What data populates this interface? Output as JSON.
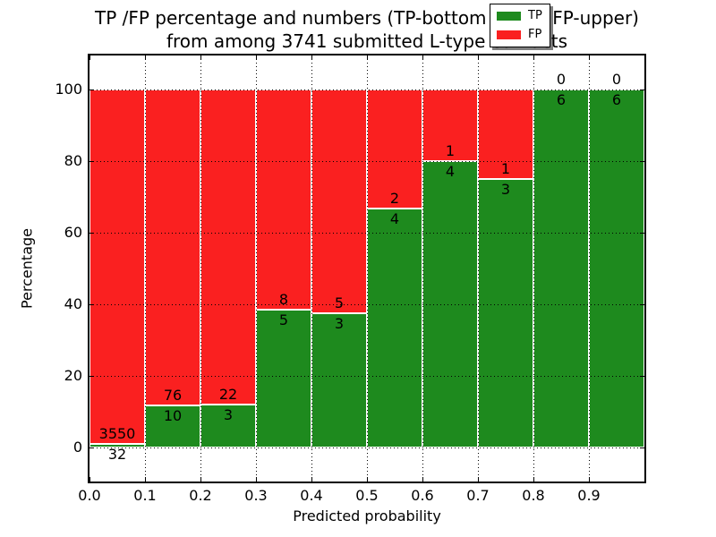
{
  "title": {
    "line1": "TP /FP percentage and numbers (TP-bottom value, FP-upper)",
    "line2": "from among 3741 submitted L-type contacts"
  },
  "axes": {
    "xlabel": "Predicted probability",
    "ylabel": "Percentage"
  },
  "legend": {
    "items": [
      {
        "label": "TP",
        "color": "#1e8a1e"
      },
      {
        "label": "FP",
        "color": "#fa2020"
      }
    ]
  },
  "chart_data": {
    "type": "bar",
    "stacked": true,
    "normalized": "percent-of-bin",
    "title": "TP /FP percentage and numbers (TP-bottom value, FP-upper) from among 3741 submitted L-type contacts",
    "xlabel": "Predicted probability",
    "ylabel": "Percentage",
    "xlim": [
      0.0,
      1.0
    ],
    "ylim": [
      -9.5,
      109.5
    ],
    "yticks": [
      0,
      20,
      40,
      60,
      80,
      100
    ],
    "xtick_labels": [
      "0.0",
      "0.1",
      "0.2",
      "0.3",
      "0.4",
      "0.5",
      "0.6",
      "0.7",
      "0.8",
      "0.9"
    ],
    "grid": "dotted",
    "legend_position": "upper right",
    "total_submitted": 3741,
    "bin_width": 0.1,
    "bins": [
      {
        "range": "0.0-0.1",
        "tp": 32,
        "fp": 3550
      },
      {
        "range": "0.1-0.2",
        "tp": 10,
        "fp": 76
      },
      {
        "range": "0.2-0.3",
        "tp": 3,
        "fp": 22
      },
      {
        "range": "0.3-0.4",
        "tp": 5,
        "fp": 8
      },
      {
        "range": "0.4-0.5",
        "tp": 3,
        "fp": 5
      },
      {
        "range": "0.5-0.6",
        "tp": 4,
        "fp": 2
      },
      {
        "range": "0.6-0.7",
        "tp": 4,
        "fp": 1
      },
      {
        "range": "0.7-0.8",
        "tp": 3,
        "fp": 1
      },
      {
        "range": "0.8-0.9",
        "tp": 6,
        "fp": 0
      },
      {
        "range": "0.9-1.0",
        "tp": 6,
        "fp": 0
      }
    ],
    "series": [
      {
        "name": "TP",
        "color": "#1e8a1e",
        "position": "bottom"
      },
      {
        "name": "FP",
        "color": "#fa2020",
        "position": "top"
      }
    ]
  }
}
